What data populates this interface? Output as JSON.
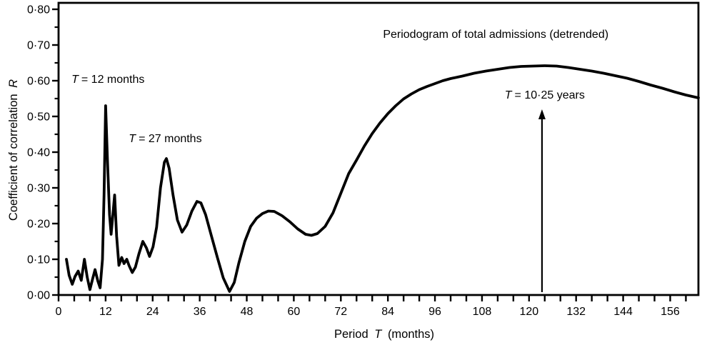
{
  "figure": {
    "background": "#ffffff",
    "line_color": "#000000"
  },
  "chart_data": {
    "type": "line",
    "title": "Periodogram of total admissions (detrended)",
    "xlabel": "Period T (months)",
    "ylabel": "Coefficient of correlation R",
    "xlabel_parts": {
      "pre": "Period",
      "italic": "T",
      "post": "(months)"
    },
    "ylabel_parts": {
      "pre": "Coefficient of correlation",
      "italic": "R"
    },
    "x_axis": {
      "min": 0,
      "max": 163.2,
      "tick_step": 4,
      "label_step": 12,
      "tick_labels": [
        "0",
        "12",
        "24",
        "36",
        "48",
        "60",
        "72",
        "84",
        "96",
        "108",
        "120",
        "132",
        "144",
        "156"
      ]
    },
    "y_axis": {
      "min": 0,
      "max": 0.818,
      "major_step": 0.1,
      "minor_step": 0.05,
      "tick_labels": [
        "0·00",
        "0·10",
        "0·20",
        "0·30",
        "0·40",
        "0·50",
        "0·60",
        "0·70",
        "0·80"
      ]
    },
    "grid": false,
    "legend": "none",
    "series": [
      {
        "name": "periodogram",
        "points": [
          [
            2,
            0.1
          ],
          [
            2.7,
            0.055
          ],
          [
            3.5,
            0.03
          ],
          [
            4.2,
            0.052
          ],
          [
            5,
            0.067
          ],
          [
            5.8,
            0.041
          ],
          [
            6.6,
            0.1
          ],
          [
            7.3,
            0.05
          ],
          [
            8,
            0.015
          ],
          [
            8.7,
            0.046
          ],
          [
            9.3,
            0.071
          ],
          [
            10,
            0.04
          ],
          [
            10.6,
            0.02
          ],
          [
            11.2,
            0.1
          ],
          [
            11.6,
            0.28
          ],
          [
            12,
            0.53
          ],
          [
            12.5,
            0.37
          ],
          [
            13,
            0.225
          ],
          [
            13.4,
            0.17
          ],
          [
            13.9,
            0.23
          ],
          [
            14.3,
            0.28
          ],
          [
            14.8,
            0.165
          ],
          [
            15.4,
            0.083
          ],
          [
            16.1,
            0.105
          ],
          [
            16.7,
            0.088
          ],
          [
            17.4,
            0.1
          ],
          [
            18,
            0.082
          ],
          [
            18.8,
            0.063
          ],
          [
            19.6,
            0.078
          ],
          [
            20.5,
            0.115
          ],
          [
            21.5,
            0.15
          ],
          [
            22.4,
            0.132
          ],
          [
            23.2,
            0.108
          ],
          [
            24.1,
            0.135
          ],
          [
            25,
            0.19
          ],
          [
            26,
            0.3
          ],
          [
            27,
            0.372
          ],
          [
            27.5,
            0.382
          ],
          [
            28.2,
            0.355
          ],
          [
            29.2,
            0.28
          ],
          [
            30.3,
            0.21
          ],
          [
            31.5,
            0.176
          ],
          [
            32.7,
            0.196
          ],
          [
            34,
            0.235
          ],
          [
            35.3,
            0.262
          ],
          [
            36.3,
            0.258
          ],
          [
            37.5,
            0.225
          ],
          [
            39,
            0.165
          ],
          [
            40.5,
            0.105
          ],
          [
            42,
            0.048
          ],
          [
            43.6,
            0.01
          ],
          [
            44.8,
            0.035
          ],
          [
            46,
            0.09
          ],
          [
            47.5,
            0.15
          ],
          [
            49,
            0.192
          ],
          [
            50.5,
            0.215
          ],
          [
            52,
            0.228
          ],
          [
            53.5,
            0.235
          ],
          [
            55,
            0.234
          ],
          [
            57,
            0.222
          ],
          [
            59,
            0.205
          ],
          [
            61,
            0.185
          ],
          [
            63,
            0.17
          ],
          [
            64.5,
            0.167
          ],
          [
            66,
            0.172
          ],
          [
            68,
            0.192
          ],
          [
            70,
            0.23
          ],
          [
            72,
            0.285
          ],
          [
            74,
            0.34
          ],
          [
            76,
            0.378
          ],
          [
            78,
            0.417
          ],
          [
            80,
            0.452
          ],
          [
            82,
            0.482
          ],
          [
            84,
            0.508
          ],
          [
            86,
            0.53
          ],
          [
            88,
            0.549
          ],
          [
            90,
            0.563
          ],
          [
            92,
            0.575
          ],
          [
            94,
            0.584
          ],
          [
            96,
            0.592
          ],
          [
            98,
            0.6
          ],
          [
            100,
            0.606
          ],
          [
            103,
            0.613
          ],
          [
            106,
            0.621
          ],
          [
            109,
            0.627
          ],
          [
            112,
            0.632
          ],
          [
            115,
            0.637
          ],
          [
            118,
            0.64
          ],
          [
            121,
            0.641
          ],
          [
            124,
            0.642
          ],
          [
            127,
            0.641
          ],
          [
            130,
            0.637
          ],
          [
            133,
            0.632
          ],
          [
            136,
            0.627
          ],
          [
            139,
            0.621
          ],
          [
            142,
            0.614
          ],
          [
            145,
            0.607
          ],
          [
            148,
            0.598
          ],
          [
            151,
            0.588
          ],
          [
            154,
            0.579
          ],
          [
            157,
            0.569
          ],
          [
            160,
            0.56
          ],
          [
            163.2,
            0.552
          ]
        ]
      }
    ],
    "annotations": [
      {
        "id": "title",
        "italic": "",
        "rest": "Periodogram of total admissions (detrended)",
        "x_months": 111.5,
        "y_value": 0.72,
        "anchor": "middle"
      },
      {
        "id": "t12",
        "italic": "T",
        "rest": "= 12 months",
        "x_months": 3.3,
        "y_value": 0.594,
        "anchor": "start"
      },
      {
        "id": "t27",
        "italic": "T",
        "rest": "= 27 months",
        "x_months": 17.9,
        "y_value": 0.428,
        "anchor": "start"
      },
      {
        "id": "t10-25",
        "italic": "T",
        "rest": "= 10·25 years",
        "x_months": 124.0,
        "y_value": 0.55,
        "anchor": "middle"
      }
    ],
    "arrow": {
      "x_months": 123.3,
      "y_from": 0.008,
      "y_to": 0.52
    }
  }
}
